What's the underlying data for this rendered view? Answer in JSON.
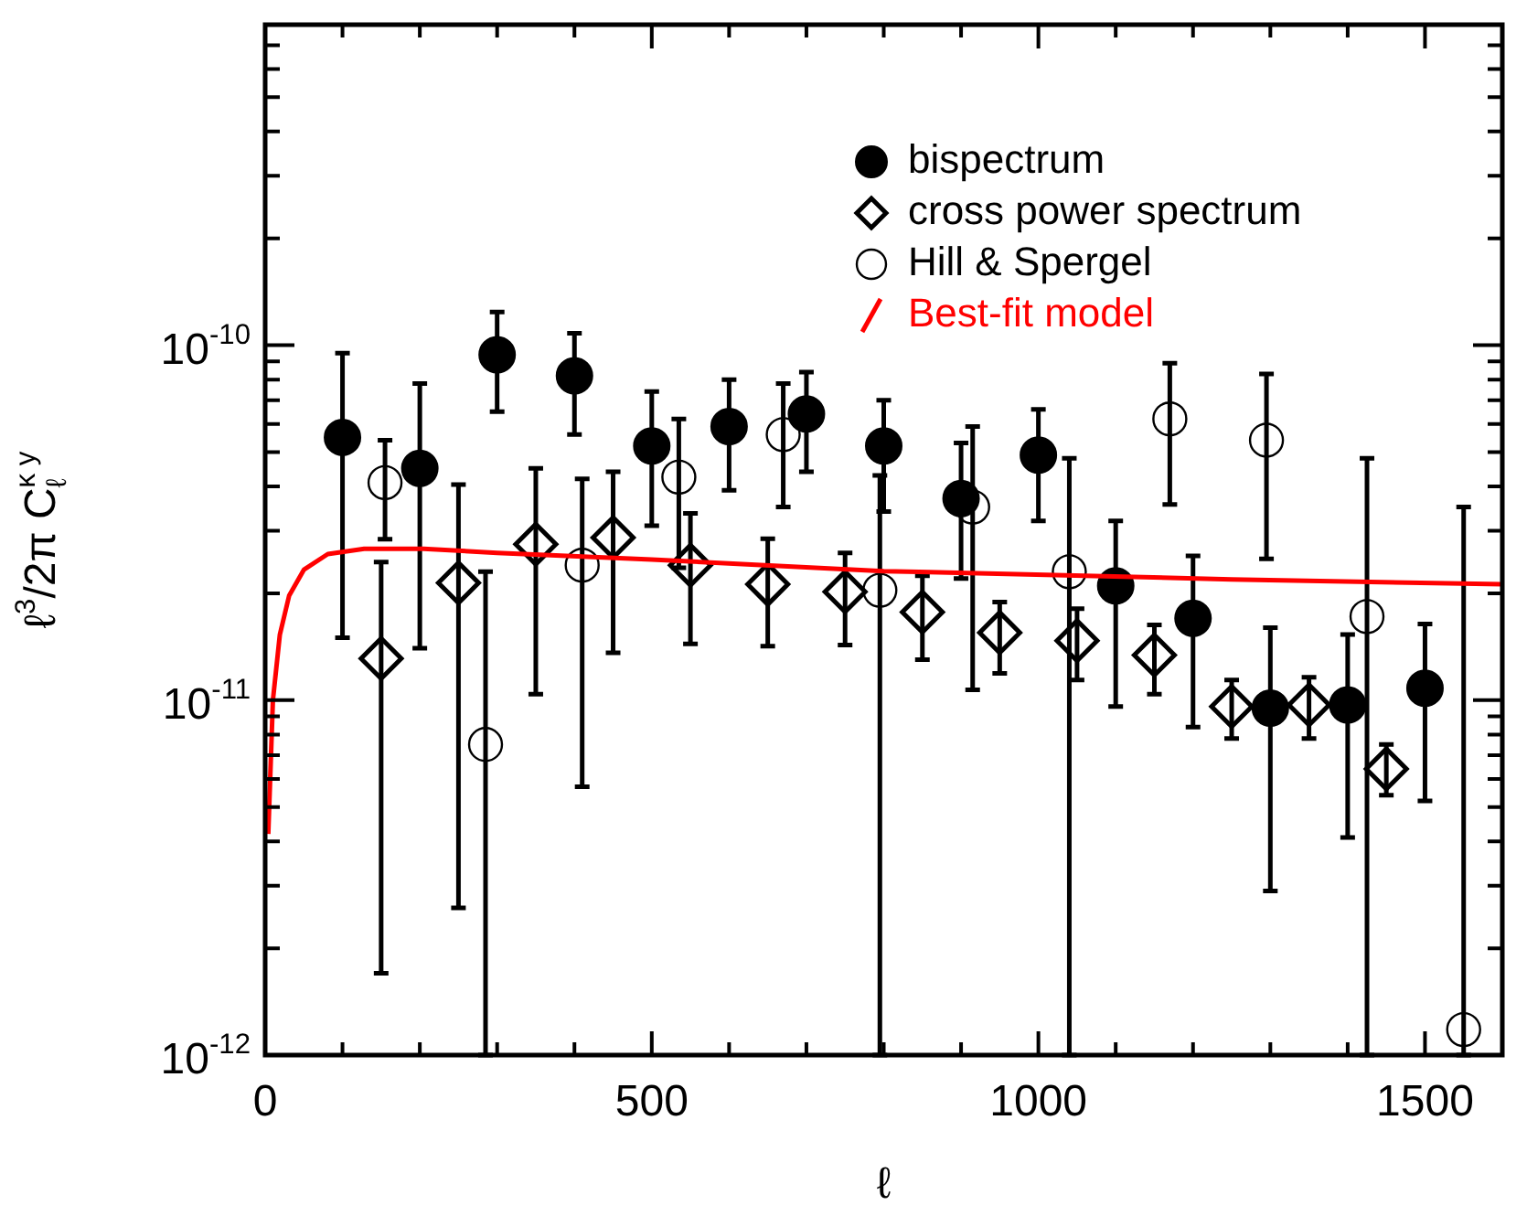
{
  "chart_data": {
    "type": "scatter",
    "xlabel": "ℓ",
    "ylabel": "ℓ$^{3}$/2π C$_{ℓ}$$^{κ y}$",
    "log": true,
    "legend": "top right",
    "xlim": [
      0,
      1600
    ],
    "xticks": [
      0,
      {
        "value": 100,
        "label": null
      },
      {
        "value": 200,
        "label": null
      },
      {
        "value": 300,
        "label": null
      },
      {
        "value": 400,
        "label": null
      },
      500,
      {
        "value": 600,
        "label": null
      },
      {
        "value": 700,
        "label": null
      },
      {
        "value": 800,
        "label": null
      },
      {
        "value": 900,
        "label": null
      },
      1000,
      {
        "value": 1100,
        "label": null
      },
      {
        "value": 1200,
        "label": null
      },
      {
        "value": 1300,
        "label": null
      },
      {
        "value": 1400,
        "label": null
      },
      1500
    ],
    "ylim": [
      1e-12,
      8e-10
    ],
    "yticks": [
      {
        "value": 1e-12,
        "label": "10$^{-12}$"
      },
      {
        "value": 2e-12,
        "label": null
      },
      {
        "value": 3e-12,
        "label": null
      },
      {
        "value": 4e-12,
        "label": null
      },
      {
        "value": 5e-12,
        "label": null
      },
      {
        "value": 6e-12,
        "label": null
      },
      {
        "value": 7e-12,
        "label": null
      },
      {
        "value": 8e-12,
        "label": null
      },
      {
        "value": 9e-12,
        "label": null
      },
      {
        "value": 1e-11,
        "label": "10$^{-11}$"
      },
      {
        "value": 2e-11,
        "label": null
      },
      {
        "value": 3e-11,
        "label": null
      },
      {
        "value": 4e-11,
        "label": null
      },
      {
        "value": 5e-11,
        "label": null
      },
      {
        "value": 6e-11,
        "label": null
      },
      {
        "value": 7e-11,
        "label": null
      },
      {
        "value": 8e-11,
        "label": null
      },
      {
        "value": 9e-11,
        "label": null
      },
      {
        "value": 1e-10,
        "label": "10$^{-10}$"
      },
      {
        "value": 2e-10,
        "label": null
      },
      {
        "value": 3e-10,
        "label": null
      },
      {
        "value": 4e-10,
        "label": null
      },
      {
        "value": 5e-10,
        "label": null
      },
      {
        "value": 6e-10,
        "label": null
      },
      {
        "value": 7e-10,
        "label": null
      }
    ],
    "series": [
      {
        "name": "bispectrum",
        "marker": "circle",
        "color": "#000000",
        "x": [
          100,
          200,
          300,
          400,
          500,
          600,
          700,
          800,
          900,
          1000,
          1100,
          1200,
          1300,
          1400,
          1500
        ],
        "values": [
          5.5e-11,
          4.5e-11,
          9.4e-11,
          8.2e-11,
          5.2e-11,
          5.9e-11,
          6.4e-11,
          5.2e-11,
          3.7e-11,
          4.9e-11,
          2.1e-11,
          1.7e-11,
          9.5e-12,
          9.7e-12,
          1.08e-11
        ],
        "errors": [
          [
            1.5e-11,
            9.5e-11
          ],
          [
            1.4e-11,
            7.8e-11
          ],
          [
            6.5e-11,
            1.24e-10
          ],
          [
            5.6e-11,
            1.08e-10
          ],
          [
            3.1e-11,
            7.4e-11
          ],
          [
            3.9e-11,
            8e-11
          ],
          [
            4.4e-11,
            8.4e-11
          ],
          [
            3.4e-11,
            7e-11
          ],
          [
            2.2e-11,
            5.3e-11
          ],
          [
            3.2e-11,
            6.6e-11
          ],
          [
            9.6e-12,
            3.2e-11
          ],
          [
            8.4e-12,
            2.55e-11
          ],
          [
            2.9e-12,
            1.6e-11
          ],
          [
            4.1e-12,
            1.53e-11
          ],
          [
            5.2e-12,
            1.64e-11
          ]
        ]
      },
      {
        "name": "cross power spectrum",
        "marker": "diamond",
        "color": "#000000",
        "x": [
          150,
          250,
          350,
          450,
          550,
          650,
          750,
          850,
          950,
          1050,
          1150,
          1250,
          1350,
          1450
        ],
        "values": [
          1.31e-11,
          2.14e-11,
          2.75e-11,
          2.87e-11,
          2.4e-11,
          2.12e-11,
          2.02e-11,
          1.77e-11,
          1.55e-11,
          1.47e-11,
          1.34e-11,
          9.6e-12,
          9.7e-12,
          6.4e-12
        ],
        "errors": [
          [
            1.7e-12,
            2.45e-11
          ],
          [
            2.6e-12,
            4.05e-11
          ],
          [
            1.04e-11,
            4.5e-11
          ],
          [
            1.36e-11,
            4.4e-11
          ],
          [
            1.44e-11,
            3.36e-11
          ],
          [
            1.42e-11,
            2.85e-11
          ],
          [
            1.43e-11,
            2.6e-11
          ],
          [
            1.3e-11,
            2.24e-11
          ],
          [
            1.19e-11,
            1.89e-11
          ],
          [
            1.14e-11,
            1.81e-11
          ],
          [
            1.04e-11,
            1.63e-11
          ],
          [
            7.8e-12,
            1.14e-11
          ],
          [
            7.8e-12,
            1.16e-11
          ],
          [
            5.4e-12,
            7.5e-12
          ]
        ]
      },
      {
        "name": "Hill & Spergel",
        "marker": "circle",
        "color": "#000000",
        "x": [
          155,
          285,
          410,
          535,
          670,
          795,
          915,
          1040,
          1170,
          1295,
          1425,
          1550
        ],
        "values": [
          4.1e-11,
          7.5e-12,
          2.4e-11,
          4.25e-11,
          5.6e-11,
          2.04e-11,
          3.5e-11,
          2.3e-11,
          6.2e-11,
          5.4e-11,
          1.72e-11,
          1.18e-12
        ],
        "errors": [
          [
            2.84e-11,
            5.4e-11
          ],
          [
            1e-12,
            2.3e-11
          ],
          [
            5.7e-12,
            4.2e-11
          ],
          [
            2.36e-11,
            6.2e-11
          ],
          [
            3.5e-11,
            7.8e-11
          ],
          [
            1e-12,
            4.3e-11
          ],
          [
            1.07e-11,
            5.9e-11
          ],
          [
            1e-12,
            4.8e-11
          ],
          [
            3.56e-11,
            8.9e-11
          ],
          [
            2.5e-11,
            8.3e-11
          ],
          [
            1e-12,
            4.8e-11
          ],
          [
            1e-12,
            3.5e-11
          ]
        ]
      },
      {
        "name": "Best-fit model",
        "type": "line",
        "marker": "none",
        "color": "#ff0000",
        "x": [
          4,
          10,
          19,
          31,
          50,
          81,
          128,
          205,
          300,
          500,
          800,
          1250,
          1600
        ],
        "values": [
          4.2e-12,
          1e-11,
          1.53e-11,
          1.97e-11,
          2.33e-11,
          2.58e-11,
          2.67e-11,
          2.67e-11,
          2.6e-11,
          2.49e-11,
          2.31e-11,
          2.19e-11,
          2.12e-11
        ]
      }
    ]
  }
}
